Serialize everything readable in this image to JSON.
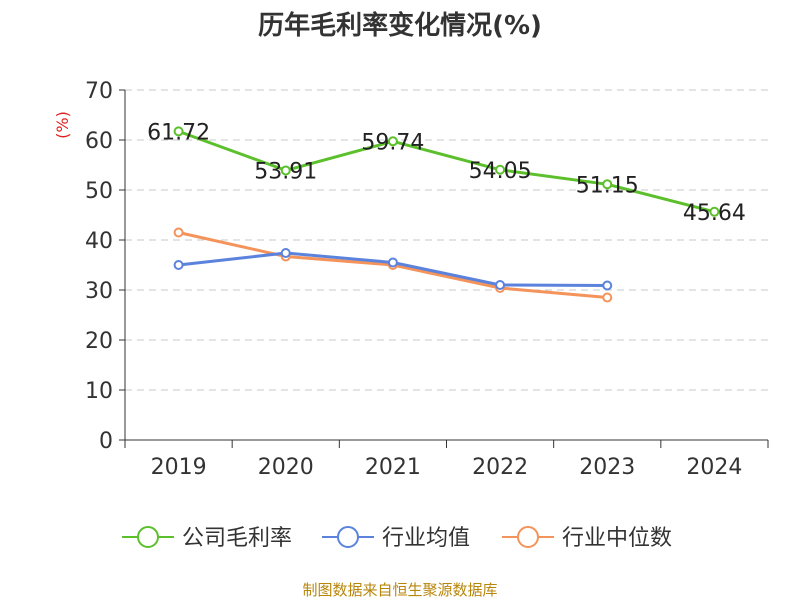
{
  "chart_data": {
    "type": "line",
    "title": "历年毛利率变化情况(%)",
    "ylabel": "(%)",
    "xlabel": "",
    "categories": [
      "2019",
      "2020",
      "2021",
      "2022",
      "2023",
      "2024"
    ],
    "ylim": [
      0,
      70
    ],
    "yticks": [
      0,
      10,
      20,
      30,
      40,
      50,
      60,
      70
    ],
    "grid": true,
    "legend_position": "bottom",
    "series": [
      {
        "name": "公司毛利率",
        "color": "#5cc02c",
        "values": [
          61.72,
          53.91,
          59.74,
          54.05,
          51.15,
          45.64
        ],
        "labels": [
          "61.72",
          "53.91",
          "59.74",
          "54.05",
          "51.15",
          "45.64"
        ]
      },
      {
        "name": "行业均值",
        "color": "#5b82dc",
        "values": [
          35.0,
          37.4,
          35.5,
          31.0,
          30.9,
          null
        ]
      },
      {
        "name": "行业中位数",
        "color": "#f4935a",
        "values": [
          41.5,
          36.7,
          35.0,
          30.4,
          28.5,
          null
        ]
      }
    ],
    "source": "制图数据来自恒生聚源数据库"
  }
}
